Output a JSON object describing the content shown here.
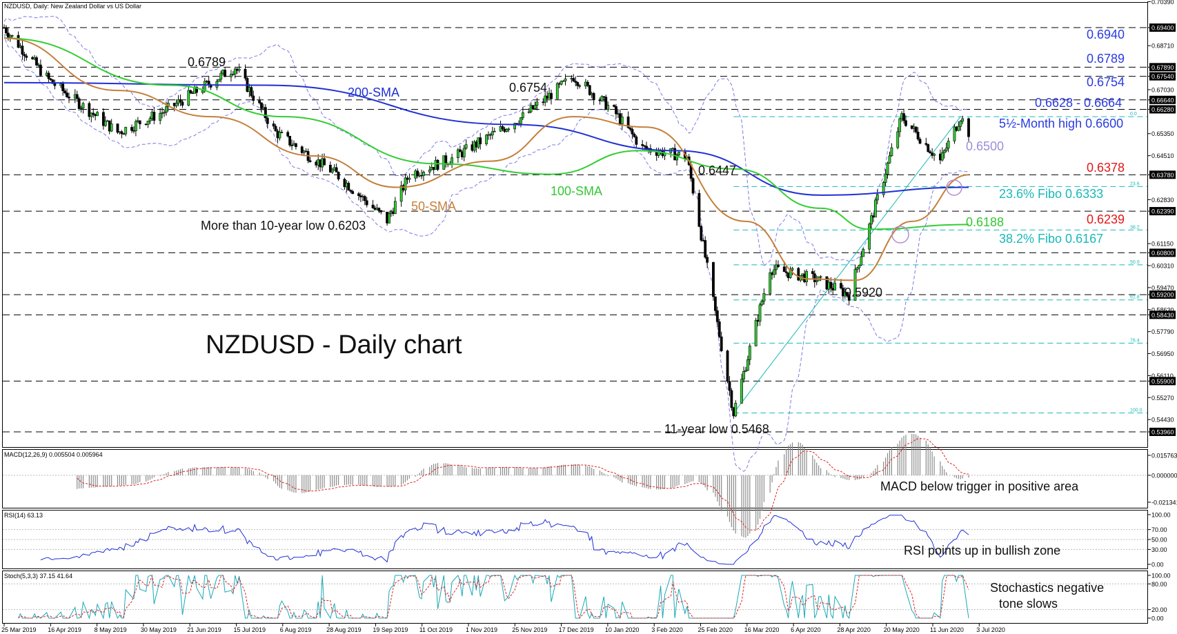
{
  "header": {
    "main": "NZDUSD, Daily:  New Zealand Dollar vs US Dollar",
    "macd": "MACD(12,26,9) 0.005504 0.005964",
    "rsi": "RSI(14) 63.13",
    "stoch": "Stoch(5,3,3) 37.15 41.64"
  },
  "chart_data": {
    "type": "line",
    "title": "NZDUSD - Daily chart",
    "price_axis": {
      "range": [
        0.5338,
        0.7035
      ],
      "ticks": [
        "0.70390",
        "0.69400",
        "0.68710",
        "0.67890",
        "0.67540",
        "0.67030",
        "0.66640",
        "0.66280",
        "0.65350",
        "0.64510",
        "0.63780",
        "0.62830",
        "0.62390",
        "0.61150",
        "0.60800",
        "0.60310",
        "0.59470",
        "0.59200",
        "0.58630",
        "0.58430",
        "0.57790",
        "0.56950",
        "0.56110",
        "0.55900",
        "0.55270",
        "0.54430",
        "0.53960"
      ],
      "highlighted_ticks": [
        "0.69400",
        "0.67890",
        "0.67540",
        "0.66640",
        "0.66280",
        "0.63780",
        "0.62390",
        "0.60800",
        "0.59200",
        "0.58430",
        "0.55900",
        "0.53960"
      ]
    },
    "x_axis": {
      "labels": [
        "25 Mar 2019",
        "16 Apr 2019",
        "8 May 2019",
        "30 May 2019",
        "21 Jun 2019",
        "15 Jul 2019",
        "6 Aug 2019",
        "28 Aug 2019",
        "19 Sep 2019",
        "11 Oct 2019",
        "1 Nov 2019",
        "25 Nov 2019",
        "17 Dec 2019",
        "10 Jan 2020",
        "3 Feb 2020",
        "25 Feb 2020",
        "16 Mar 2020",
        "6 Apr 2020",
        "28 Apr 2020",
        "20 May 2020",
        "11 Jun 2020",
        "3 Jul 2020"
      ]
    },
    "price_path": [
      [
        "2019-03-25",
        0.694
      ],
      [
        "2019-04-16",
        0.674
      ],
      [
        "2019-05-20",
        0.654
      ],
      [
        "2019-06-12",
        0.662
      ],
      [
        "2019-07-17",
        0.6789
      ],
      [
        "2019-08-06",
        0.654
      ],
      [
        "2019-09-05",
        0.638
      ],
      [
        "2019-09-30",
        0.6203
      ],
      [
        "2019-10-11",
        0.638
      ],
      [
        "2019-11-01",
        0.644
      ],
      [
        "2019-12-06",
        0.66
      ],
      [
        "2019-12-31",
        0.6754
      ],
      [
        "2020-01-20",
        0.662
      ],
      [
        "2020-02-03",
        0.648
      ],
      [
        "2020-02-25",
        0.6447
      ],
      [
        "2020-03-19",
        0.5468
      ],
      [
        "2020-04-06",
        0.602
      ],
      [
        "2020-04-28",
        0.598
      ],
      [
        "2020-05-15",
        0.592
      ],
      [
        "2020-06-10",
        0.66
      ],
      [
        "2020-06-29",
        0.643
      ],
      [
        "2020-07-09",
        0.66
      ],
      [
        "2020-07-13",
        0.654
      ]
    ],
    "series": [
      {
        "name": "200-SMA",
        "color": "#1f2fd4",
        "points": [
          [
            "2019-03-25",
            0.673
          ],
          [
            "2019-08-01",
            0.672
          ],
          [
            "2019-12-01",
            0.657
          ],
          [
            "2020-02-20",
            0.647
          ],
          [
            "2020-05-01",
            0.63
          ],
          [
            "2020-07-13",
            0.633
          ]
        ]
      },
      {
        "name": "100-SMA",
        "color": "#32cd32",
        "points": [
          [
            "2019-03-25",
            0.69
          ],
          [
            "2019-06-15",
            0.672
          ],
          [
            "2019-08-10",
            0.66
          ],
          [
            "2019-10-25",
            0.642
          ],
          [
            "2019-12-20",
            0.638
          ],
          [
            "2020-02-01",
            0.647
          ],
          [
            "2020-03-20",
            0.64
          ],
          [
            "2020-05-01",
            0.625
          ],
          [
            "2020-05-25",
            0.617
          ],
          [
            "2020-07-13",
            0.6188
          ]
        ]
      },
      {
        "name": "50-SMA",
        "color": "#c47f3a",
        "points": [
          [
            "2019-03-25",
            0.69
          ],
          [
            "2019-05-20",
            0.67
          ],
          [
            "2019-07-05",
            0.66
          ],
          [
            "2019-08-25",
            0.645
          ],
          [
            "2019-10-05",
            0.633
          ],
          [
            "2019-11-20",
            0.643
          ],
          [
            "2019-12-31",
            0.66
          ],
          [
            "2020-02-05",
            0.656
          ],
          [
            "2020-03-25",
            0.62
          ],
          [
            "2020-04-25",
            0.598
          ],
          [
            "2020-05-18",
            0.5975
          ],
          [
            "2020-06-15",
            0.62
          ],
          [
            "2020-07-13",
            0.6378
          ]
        ]
      }
    ],
    "levels": [
      {
        "label": "0.6940",
        "value": 0.694,
        "color": "#2a3be0"
      },
      {
        "label": "0.6789",
        "value": 0.6789,
        "color": "#2a3be0"
      },
      {
        "label": "0.6754",
        "value": 0.6754,
        "color": "#2a3be0"
      },
      {
        "label": "0.6628 - 0.6664",
        "value": 0.6646,
        "color": "#2a3be0"
      },
      {
        "label": "5½-Month high 0.6600",
        "value": 0.66,
        "color": "#2a3be0"
      },
      {
        "label": "0.6500",
        "value": 0.65,
        "color": "#9b8fd8"
      },
      {
        "label": "0.6378",
        "value": 0.6378,
        "color": "#e01818"
      },
      {
        "label": "23.6% Fibo 0.6333",
        "value": 0.6333,
        "color": "#19b8b8"
      },
      {
        "label": "0.6239",
        "value": 0.6239,
        "color": "#e01818"
      },
      {
        "label": "0.6188",
        "value": 0.6188,
        "color": "#32c832"
      },
      {
        "label": "38.2% Fibo 0.6167",
        "value": 0.6167,
        "color": "#19b8b8"
      }
    ],
    "fibo": [
      {
        "label": "0.0",
        "value": 0.66
      },
      {
        "label": "23.6",
        "value": 0.6333
      },
      {
        "label": "38.2",
        "value": 0.6167
      },
      {
        "label": "50.0",
        "value": 0.6034
      },
      {
        "label": "61.8",
        "value": 0.59
      },
      {
        "label": "76.4",
        "value": 0.5735
      },
      {
        "label": "100.0",
        "value": 0.5468
      }
    ],
    "annotations": {
      "a6789": "0.6789",
      "a6754": "0.6754",
      "a6447": "0.6447",
      "a5920": "0.5920",
      "low_10y": "More than 10-year low 0.6203",
      "low_11y": "11-year low 0.5468",
      "sma200": "200-SMA",
      "sma100": "100-SMA",
      "sma50": "50-SMA"
    },
    "macd": {
      "ticks": [
        "0.015763",
        "0.000000",
        "-0.021341"
      ],
      "note": "MACD below trigger in positive area"
    },
    "rsi": {
      "ticks": [
        "100.00",
        "70.00",
        "50.00",
        "30.00",
        "0.00"
      ],
      "note": "RSI points up in bullish zone"
    },
    "stoch": {
      "ticks": [
        "100.00",
        "80.00",
        "20.00",
        "0.00"
      ],
      "note_line1": "Stochastics negative",
      "note_line2": "tone slows"
    }
  }
}
